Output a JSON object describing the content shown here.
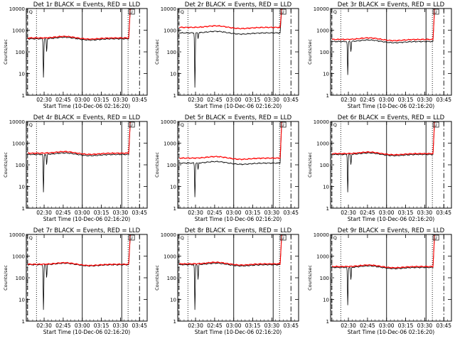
{
  "chart_data": {
    "type": "line",
    "grid_layout": "3x3",
    "common": {
      "xlabel": "Start Time (10-Dec-06 02:16:20)",
      "ylabel": "Counts/sec",
      "ylog": true,
      "ylim": [
        1,
        10000
      ],
      "yticks": [
        "1",
        "10",
        "100",
        "1000",
        "10000"
      ],
      "xlim_minutes": [
        0,
        95
      ],
      "xticks": [
        {
          "label": "02:30",
          "min": 14
        },
        {
          "label": "02:45",
          "min": 29
        },
        {
          "label": "03:00",
          "min": 44
        },
        {
          "label": "03:15",
          "min": 59
        },
        {
          "label": "03:30",
          "min": 74
        },
        {
          "label": "03:45",
          "min": 89
        }
      ],
      "series_legend_text": "BLACK = Events, RED = LLD",
      "vlines": [
        {
          "min": 1,
          "style": "dashed"
        },
        {
          "min": 8,
          "style": "dotted"
        },
        {
          "min": 44,
          "style": "solid"
        },
        {
          "min": 75,
          "style": "solid"
        },
        {
          "min": 80,
          "style": "dotted"
        },
        {
          "min": 89,
          "style": "dashdot"
        }
      ],
      "markers": [
        "Q",
        "U"
      ],
      "series_colors": {
        "events": "#000000",
        "lld": "#ff0000"
      }
    },
    "panels": [
      {
        "title": "Det 1r BLACK = Events, RED = LLD",
        "events_base": 400,
        "lld_ratio": 1.1,
        "dips": [
          [
            13.5,
            6
          ],
          [
            16,
            100
          ]
        ]
      },
      {
        "title": "Det 2r BLACK = Events, RED = LLD",
        "events_base": 750,
        "lld_ratio": 1.8,
        "dips": [
          [
            13.5,
            2
          ],
          [
            16,
            400
          ]
        ]
      },
      {
        "title": "Det 3r BLACK = Events, RED = LLD",
        "events_base": 300,
        "lld_ratio": 1.25,
        "dips": [
          [
            13.5,
            8
          ],
          [
            16,
            100
          ]
        ]
      },
      {
        "title": "Det 4r BLACK = Events, RED = LLD",
        "events_base": 300,
        "lld_ratio": 1.15,
        "dips": [
          [
            13.5,
            5
          ],
          [
            16,
            100
          ]
        ]
      },
      {
        "title": "Det 5r BLACK = Events, RED = LLD",
        "events_base": 120,
        "lld_ratio": 1.7,
        "dips": [
          [
            13.5,
            3
          ],
          [
            16,
            60
          ]
        ]
      },
      {
        "title": "Det 6r BLACK = Events, RED = LLD",
        "events_base": 300,
        "lld_ratio": 1.1,
        "dips": [
          [
            13.5,
            5
          ],
          [
            16,
            100
          ]
        ]
      },
      {
        "title": "Det 7r BLACK = Events, RED = LLD",
        "events_base": 400,
        "lld_ratio": 1.05,
        "dips": [
          [
            13.5,
            3
          ],
          [
            16,
            100
          ]
        ]
      },
      {
        "title": "Det 8r BLACK = Events, RED = LLD",
        "events_base": 400,
        "lld_ratio": 1.1,
        "dips": [
          [
            13.5,
            3
          ],
          [
            16,
            80
          ]
        ]
      },
      {
        "title": "Det 9r BLACK = Events, RED = LLD",
        "events_base": 300,
        "lld_ratio": 1.1,
        "dips": [
          [
            13.5,
            5
          ],
          [
            16,
            80
          ]
        ]
      }
    ]
  }
}
